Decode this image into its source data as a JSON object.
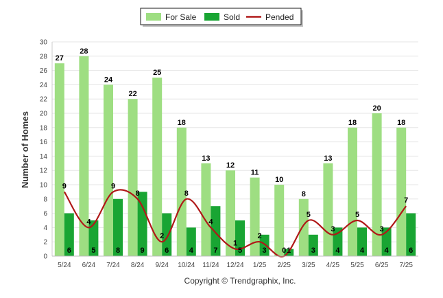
{
  "chart_data": {
    "type": "bar",
    "categories": [
      "5/24",
      "6/24",
      "7/24",
      "8/24",
      "9/24",
      "10/24",
      "11/24",
      "12/24",
      "1/25",
      "2/25",
      "3/25",
      "4/25",
      "5/25",
      "6/25",
      "7/25"
    ],
    "series": [
      {
        "name": "For Sale",
        "kind": "bar",
        "color": "#9ede82",
        "values": [
          27,
          28,
          24,
          22,
          25,
          18,
          13,
          12,
          11,
          10,
          8,
          13,
          18,
          20,
          18
        ]
      },
      {
        "name": "Sold",
        "kind": "bar",
        "color": "#19a533",
        "values": [
          6,
          5,
          8,
          9,
          6,
          4,
          7,
          5,
          3,
          1,
          3,
          4,
          4,
          4,
          6
        ]
      },
      {
        "name": "Pended",
        "kind": "line",
        "color": "#b01818",
        "values": [
          9,
          4,
          9,
          8,
          2,
          8,
          4,
          1,
          2,
          0,
          5,
          3,
          5,
          3,
          7
        ]
      }
    ],
    "ylabel": "Number of Homes",
    "xlabel": "",
    "ylim": [
      0,
      30
    ],
    "yticks": [
      0,
      2,
      4,
      6,
      8,
      10,
      12,
      14,
      16,
      18,
      20,
      22,
      24,
      26,
      28,
      30
    ],
    "grid": true,
    "legend_position": "top-center",
    "footer": "Copyright © Trendgraphix, Inc."
  }
}
